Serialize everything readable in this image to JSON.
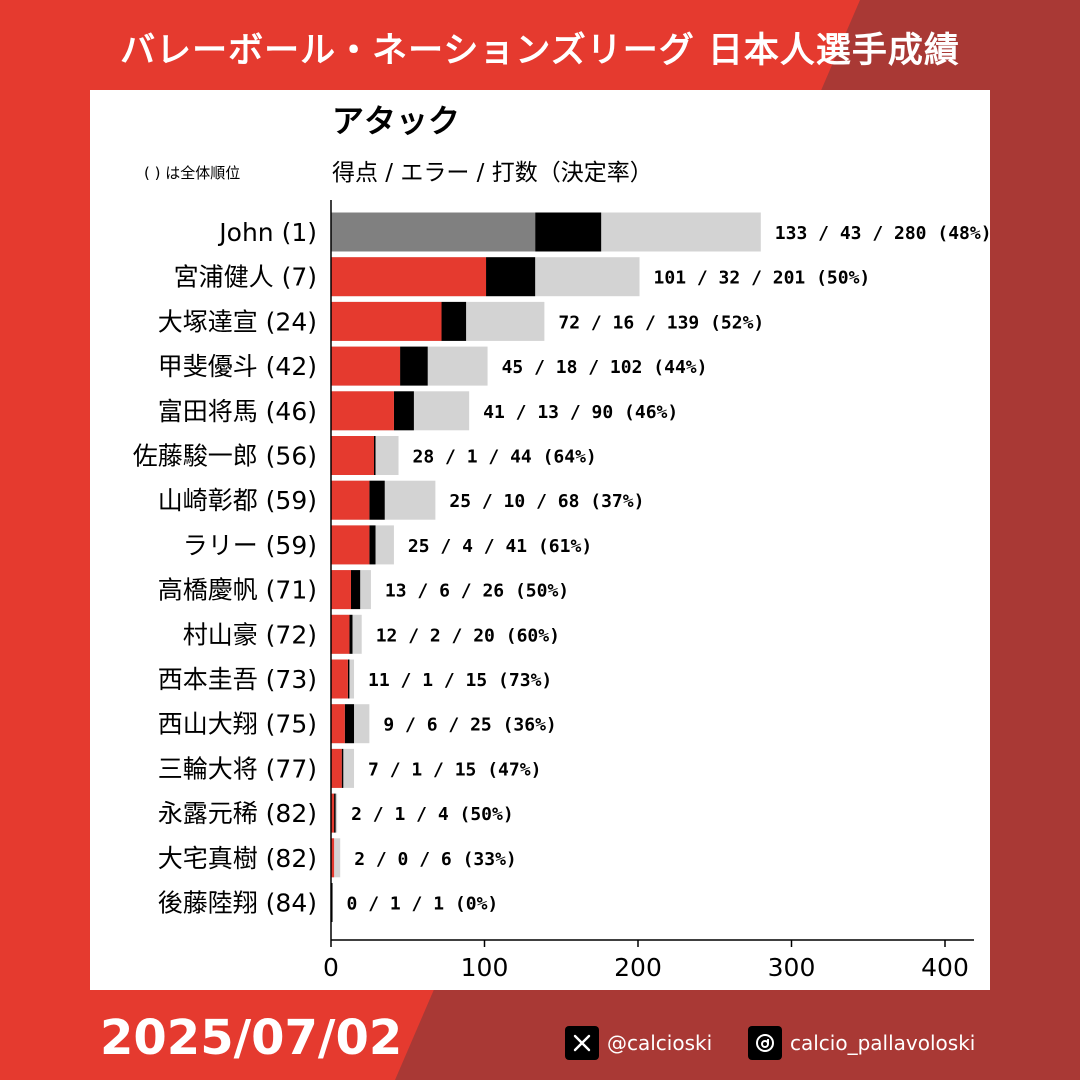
{
  "header": {
    "title": "バレーボール・ネーションズリーグ 日本人選手成績"
  },
  "footer": {
    "date": "2025/07/02",
    "social": [
      {
        "icon": "x-logo-icon",
        "handle": "@calcioski"
      },
      {
        "icon": "threads-logo-icon",
        "handle": "calcio_pallavoloski"
      }
    ]
  },
  "colors": {
    "background_left": "#e53a2f",
    "background_right": "#a93935",
    "points_japanese": "#e53a2f",
    "points_top": "#808080",
    "errors": "#000000",
    "attempts": "#d3d3d3"
  },
  "chart_data": {
    "type": "bar",
    "orientation": "horizontal",
    "stacked": true,
    "title": "アタック",
    "subtitle": "得点 / エラー / 打数（決定率）",
    "note": "( ) は全体順位",
    "xlim": [
      0,
      420
    ],
    "xticks": [
      0,
      100,
      200,
      300,
      400
    ],
    "grid": false,
    "rows": [
      {
        "label": "John (1)",
        "points": 133,
        "errors": 43,
        "attempts": 280,
        "annotation": "133 / 43 / 280 (48%)",
        "highlight": "top"
      },
      {
        "label": "宮浦健人 (7)",
        "points": 101,
        "errors": 32,
        "attempts": 201,
        "annotation": "101 / 32 / 201 (50%)"
      },
      {
        "label": "大塚達宣 (24)",
        "points": 72,
        "errors": 16,
        "attempts": 139,
        "annotation": "72 / 16 / 139 (52%)"
      },
      {
        "label": "甲斐優斗 (42)",
        "points": 45,
        "errors": 18,
        "attempts": 102,
        "annotation": "45 / 18 / 102 (44%)"
      },
      {
        "label": "富田将馬 (46)",
        "points": 41,
        "errors": 13,
        "attempts": 90,
        "annotation": "41 / 13 / 90 (46%)"
      },
      {
        "label": "佐藤駿一郎 (56)",
        "points": 28,
        "errors": 1,
        "attempts": 44,
        "annotation": "28 / 1 / 44 (64%)"
      },
      {
        "label": "山崎彰都 (59)",
        "points": 25,
        "errors": 10,
        "attempts": 68,
        "annotation": "25 / 10 / 68 (37%)"
      },
      {
        "label": "ラリー (59)",
        "points": 25,
        "errors": 4,
        "attempts": 41,
        "annotation": "25 / 4 / 41 (61%)"
      },
      {
        "label": "高橋慶帆 (71)",
        "points": 13,
        "errors": 6,
        "attempts": 26,
        "annotation": "13 / 6 / 26 (50%)"
      },
      {
        "label": "村山豪 (72)",
        "points": 12,
        "errors": 2,
        "attempts": 20,
        "annotation": "12 / 2 / 20 (60%)"
      },
      {
        "label": "西本圭吾 (73)",
        "points": 11,
        "errors": 1,
        "attempts": 15,
        "annotation": "11 / 1 / 15 (73%)"
      },
      {
        "label": "西山大翔 (75)",
        "points": 9,
        "errors": 6,
        "attempts": 25,
        "annotation": "9 / 6 / 25 (36%)"
      },
      {
        "label": "三輪大将 (77)",
        "points": 7,
        "errors": 1,
        "attempts": 15,
        "annotation": "7 / 1 / 15 (47%)"
      },
      {
        "label": "永露元稀 (82)",
        "points": 2,
        "errors": 1,
        "attempts": 4,
        "annotation": "2 / 1 / 4 (50%)"
      },
      {
        "label": "大宅真樹 (82)",
        "points": 2,
        "errors": 0,
        "attempts": 6,
        "annotation": "2 / 0 / 6 (33%)"
      },
      {
        "label": "後藤陸翔 (84)",
        "points": 0,
        "errors": 1,
        "attempts": 1,
        "annotation": "0 / 1 / 1 (0%)"
      }
    ]
  }
}
